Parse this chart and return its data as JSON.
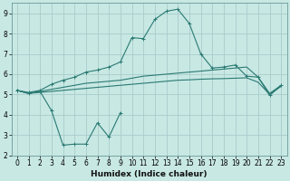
{
  "xlabel": "Humidex (Indice chaleur)",
  "background_color": "#c8e8e4",
  "grid_color": "#a8ccca",
  "line_color": "#2a7a72",
  "xlim": [
    -0.5,
    23.5
  ],
  "ylim": [
    2,
    9.5
  ],
  "x": [
    0,
    1,
    2,
    3,
    4,
    5,
    6,
    7,
    8,
    9,
    10,
    11,
    12,
    13,
    14,
    15,
    16,
    17,
    18,
    19,
    20,
    21,
    22,
    23
  ],
  "line_jagged_x": [
    0,
    1,
    2,
    3,
    4,
    5,
    6,
    7,
    8,
    9
  ],
  "line_jagged_y": [
    5.2,
    5.05,
    5.15,
    4.2,
    2.5,
    2.55,
    2.55,
    3.6,
    2.9,
    4.1
  ],
  "line_lower_x": [
    0,
    1,
    2,
    3,
    4,
    5,
    6,
    7,
    8,
    9,
    10,
    11,
    12,
    13,
    14,
    15,
    16,
    17,
    18,
    19,
    20,
    21,
    22,
    23
  ],
  "line_lower_y": [
    5.2,
    5.05,
    5.1,
    5.15,
    5.2,
    5.25,
    5.3,
    5.35,
    5.4,
    5.45,
    5.5,
    5.55,
    5.6,
    5.65,
    5.7,
    5.72,
    5.75,
    5.77,
    5.78,
    5.8,
    5.82,
    5.6,
    5.0,
    5.4
  ],
  "line_mid_x": [
    0,
    1,
    2,
    3,
    4,
    5,
    6,
    7,
    8,
    9,
    10,
    11,
    12,
    13,
    14,
    15,
    16,
    17,
    18,
    19,
    20,
    21,
    22,
    23
  ],
  "line_mid_y": [
    5.2,
    5.05,
    5.15,
    5.25,
    5.35,
    5.45,
    5.55,
    5.6,
    5.65,
    5.7,
    5.8,
    5.9,
    5.95,
    6.0,
    6.05,
    6.1,
    6.15,
    6.2,
    6.25,
    6.3,
    6.35,
    5.85,
    5.05,
    5.45
  ],
  "line_upper_x": [
    0,
    1,
    2,
    3,
    4,
    5,
    6,
    7,
    8,
    9,
    10,
    11,
    12,
    13,
    14,
    15,
    16,
    17,
    18,
    19,
    20,
    21,
    22,
    23
  ],
  "line_upper_y": [
    5.2,
    5.1,
    5.2,
    5.5,
    5.7,
    5.85,
    6.1,
    6.2,
    6.35,
    6.6,
    7.8,
    7.75,
    8.7,
    9.1,
    9.2,
    8.5,
    7.0,
    6.3,
    6.35,
    6.45,
    5.9,
    5.85,
    4.95,
    5.45
  ],
  "xticks": [
    0,
    1,
    2,
    3,
    4,
    5,
    6,
    7,
    8,
    9,
    10,
    11,
    12,
    13,
    14,
    15,
    16,
    17,
    18,
    19,
    20,
    21,
    22,
    23
  ],
  "yticks": [
    2,
    3,
    4,
    5,
    6,
    7,
    8,
    9
  ],
  "tick_fontsize": 5.5,
  "xlabel_fontsize": 6.5
}
